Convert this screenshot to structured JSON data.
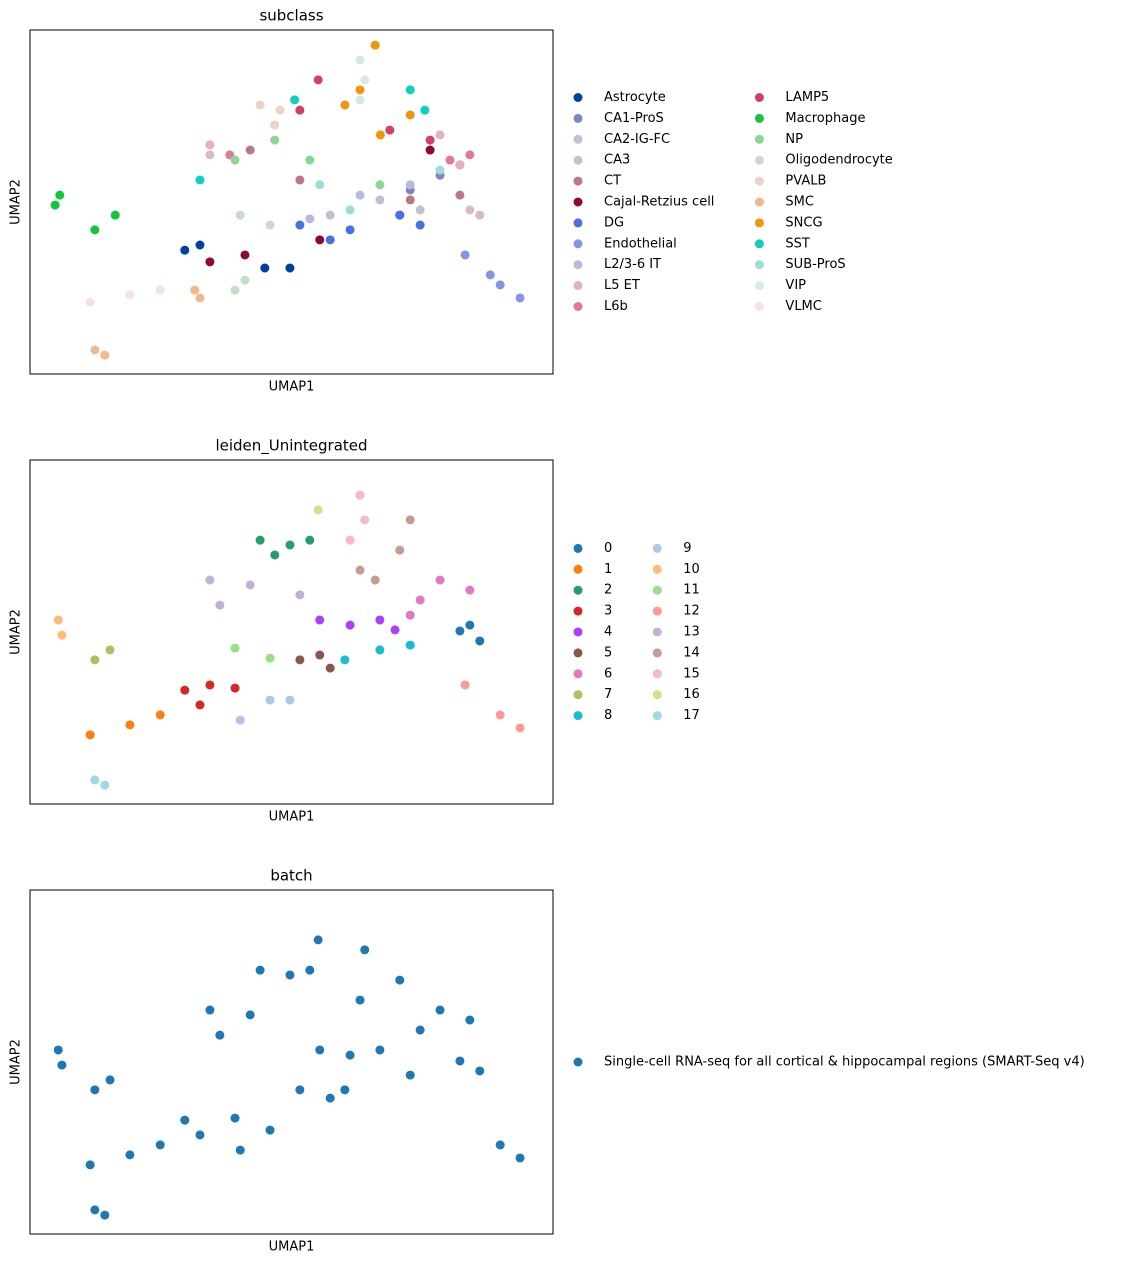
{
  "chart_data": [
    {
      "type": "scatter",
      "title": "subclass",
      "x_label": "UMAP1",
      "y_label": "UMAP2",
      "xlim": [
        0,
        100
      ],
      "ylim": [
        0,
        100
      ],
      "series": [
        {
          "name": "Astrocyte",
          "color": "#023fa5",
          "x": [
            29.6,
            32.5,
            44.9,
            49.7
          ],
          "y": [
            36,
            37.5,
            30.8,
            30.8
          ]
        },
        {
          "name": "CA1-ProS",
          "color": "#7d87b9",
          "x": [
            72.7,
            78.4,
            82.2,
            70.7
          ],
          "y": [
            53.5,
            57.8,
            60.8,
            46.2
          ]
        },
        {
          "name": "CA2-IG-FC",
          "color": "#bec1d4",
          "x": [
            66.9,
            74.6,
            57.4
          ],
          "y": [
            50.6,
            47.7,
            46.2
          ]
        },
        {
          "name": "CA3",
          "color": "#d6bcc0",
          "x": [
            84.1,
            86.0,
            34.4
          ],
          "y": [
            47.7,
            46.2,
            63.7
          ]
        },
        {
          "name": "CT",
          "color": "#bb7784",
          "x": [
            72.7,
            82.2,
            51.6,
            42.1
          ],
          "y": [
            50.6,
            52.0,
            56.4,
            65.1
          ]
        },
        {
          "name": "Cajal-Retzius cell",
          "color": "#8e063b",
          "x": [
            34.4,
            41.1,
            55.4,
            76.5
          ],
          "y": [
            32.6,
            34.6,
            39.0,
            65.1
          ]
        },
        {
          "name": "DG",
          "color": "#4a6fe3",
          "x": [
            51.6,
            61.2,
            70.7,
            74.6,
            57.4
          ],
          "y": [
            43.3,
            41.9,
            46.2,
            43.3,
            39.0
          ]
        },
        {
          "name": "Endothelial",
          "color": "#8595e1",
          "x": [
            83.2,
            89.9,
            93.7,
            88.0
          ],
          "y": [
            34.6,
            25.9,
            22.1,
            28.8
          ]
        },
        {
          "name": "L2/3-6 IT",
          "color": "#b5bbe3",
          "x": [
            53.5,
            63.1,
            72.7
          ],
          "y": [
            45.1,
            52.0,
            55.0
          ]
        },
        {
          "name": "L5 ET",
          "color": "#e6afb9",
          "x": [
            34.4,
            82.2,
            78.4
          ],
          "y": [
            66.6,
            60.8,
            69.5
          ]
        },
        {
          "name": "L6b",
          "color": "#e07b91",
          "x": [
            38.2,
            84.1,
            80.3
          ],
          "y": [
            63.7,
            63.7,
            62.2
          ]
        },
        {
          "name": "LAMP5",
          "color": "#d33f6a",
          "x": [
            55.1,
            51.6,
            68.8,
            76.5
          ],
          "y": [
            85.5,
            76.7,
            70.9,
            68.0
          ]
        },
        {
          "name": "Macrophage",
          "color": "#11c638",
          "x": [
            5.7,
            4.8,
            12.4,
            16.3
          ],
          "y": [
            52.0,
            49.1,
            41.9,
            46.2
          ]
        },
        {
          "name": "NP",
          "color": "#8dd593",
          "x": [
            39.2,
            46.8,
            53.5,
            66.9
          ],
          "y": [
            62.2,
            68.0,
            62.2,
            55.0
          ]
        },
        {
          "name": "Oligodendrocyte",
          "color": "#c6dec7",
          "x": [
            40.2,
            45.9,
            41.1,
            39.2
          ],
          "y": [
            46.2,
            43.3,
            27.3,
            24.4
          ]
        },
        {
          "name": "PVALB",
          "color": "#ead3c6",
          "x": [
            44.0,
            46.8,
            47.8
          ],
          "y": [
            78.2,
            72.4,
            76.7
          ]
        },
        {
          "name": "SMC",
          "color": "#f0b98d",
          "x": [
            12.4,
            14.3,
            31.5,
            32.5
          ],
          "y": [
            7.0,
            5.5,
            24.4,
            22.1
          ]
        },
        {
          "name": "SNCG",
          "color": "#ef9708",
          "x": [
            63.1,
            66.0,
            67.0,
            72.7,
            60.2
          ],
          "y": [
            82.6,
            95.6,
            69.5,
            75.3,
            78.2
          ]
        },
        {
          "name": "SST",
          "color": "#0fcfc0",
          "x": [
            50.6,
            72.7,
            75.5,
            32.5
          ],
          "y": [
            79.7,
            82.6,
            76.7,
            56.4
          ]
        },
        {
          "name": "SUB-ProS",
          "color": "#9cded6",
          "x": [
            55.4,
            78.4,
            61.2
          ],
          "y": [
            55.0,
            59.3,
            47.7
          ]
        },
        {
          "name": "VIP",
          "color": "#d5eae7",
          "x": [
            63.1,
            64.0,
            63.1
          ],
          "y": [
            91.3,
            85.5,
            79.7
          ]
        },
        {
          "name": "VLMC",
          "color": "#f3e1eb",
          "x": [
            11.5,
            19.1,
            24.9
          ],
          "y": [
            20.9,
            23.0,
            24.4
          ]
        }
      ]
    },
    {
      "type": "scatter",
      "title": "leiden_Unintegrated",
      "x_label": "UMAP1",
      "y_label": "UMAP2",
      "xlim": [
        0,
        100
      ],
      "ylim": [
        0,
        100
      ],
      "series": [
        {
          "name": "0",
          "color": "#1f77b4",
          "x": [
            82.2,
            86.0,
            84.1
          ],
          "y": [
            50.3,
            47.4,
            52.0
          ]
        },
        {
          "name": "1",
          "color": "#ff7f0e",
          "x": [
            11.5,
            19.1,
            24.9
          ],
          "y": [
            20.1,
            23.0,
            25.9
          ]
        },
        {
          "name": "2",
          "color": "#279e68",
          "x": [
            44.0,
            49.7,
            53.5,
            46.8
          ],
          "y": [
            76.7,
            75.3,
            76.7,
            72.4
          ]
        },
        {
          "name": "3",
          "color": "#d62728",
          "x": [
            29.6,
            32.5,
            34.4,
            39.2
          ],
          "y": [
            33.1,
            28.8,
            34.6,
            33.7
          ]
        },
        {
          "name": "4",
          "color": "#aa40fc",
          "x": [
            55.4,
            61.2,
            66.9,
            69.8
          ],
          "y": [
            53.5,
            52.0,
            53.5,
            50.6
          ]
        },
        {
          "name": "5",
          "color": "#8c564b",
          "x": [
            51.6,
            55.4,
            57.4
          ],
          "y": [
            41.9,
            43.3,
            39.5
          ]
        },
        {
          "name": "6",
          "color": "#e377c2",
          "x": [
            74.6,
            78.4,
            84.1,
            72.7
          ],
          "y": [
            59.3,
            65.1,
            62.2,
            54.9
          ]
        },
        {
          "name": "7",
          "color": "#b5bd61",
          "x": [
            12.4,
            15.3
          ],
          "y": [
            41.9,
            44.8
          ]
        },
        {
          "name": "8",
          "color": "#17becf",
          "x": [
            60.2,
            66.9,
            72.7
          ],
          "y": [
            41.9,
            44.8,
            46.2
          ]
        },
        {
          "name": "9",
          "color": "#aec7e8",
          "x": [
            40.2,
            45.9,
            49.7
          ],
          "y": [
            24.4,
            30.2,
            30.2
          ]
        },
        {
          "name": "10",
          "color": "#ffbb78",
          "x": [
            5.4,
            6.1
          ],
          "y": [
            53.5,
            49.1
          ]
        },
        {
          "name": "11",
          "color": "#98df8a",
          "x": [
            39.2,
            45.9
          ],
          "y": [
            45.3,
            42.4
          ]
        },
        {
          "name": "12",
          "color": "#ff9896",
          "x": [
            83.2,
            89.9,
            93.7
          ],
          "y": [
            34.6,
            25.9,
            22.1
          ]
        },
        {
          "name": "13",
          "color": "#c5b0d5",
          "x": [
            34.4,
            42.1,
            36.3,
            51.6
          ],
          "y": [
            65.1,
            63.7,
            57.8,
            60.8
          ]
        },
        {
          "name": "14",
          "color": "#c49c94",
          "x": [
            63.1,
            70.7,
            72.7,
            66.0
          ],
          "y": [
            68.0,
            73.8,
            82.6,
            65.1
          ]
        },
        {
          "name": "15",
          "color": "#f7b6d2",
          "x": [
            63.1,
            64.0,
            61.2
          ],
          "y": [
            89.8,
            82.6,
            76.7
          ]
        },
        {
          "name": "16",
          "color": "#dbdb8d",
          "x": [
            55.1
          ],
          "y": [
            85.5
          ]
        },
        {
          "name": "17",
          "color": "#9edae5",
          "x": [
            12.4,
            14.3
          ],
          "y": [
            7.0,
            5.5
          ]
        }
      ]
    },
    {
      "type": "scatter",
      "title": "batch",
      "x_label": "UMAP1",
      "y_label": "UMAP2",
      "xlim": [
        0,
        100
      ],
      "ylim": [
        0,
        100
      ],
      "series": [
        {
          "name": "Single-cell RNA-seq for all cortical & hippocampal regions (SMART-Seq v4)",
          "color": "#1f77b4",
          "x": [
            82.2,
            86.0,
            11.5,
            19.1,
            24.9,
            44.0,
            49.7,
            53.5,
            29.6,
            32.5,
            39.2,
            55.4,
            61.2,
            66.9,
            51.6,
            57.4,
            74.6,
            78.4,
            84.1,
            12.4,
            15.3,
            60.2,
            72.7,
            40.2,
            45.9,
            5.4,
            6.1,
            89.9,
            93.7,
            34.4,
            42.1,
            36.3,
            63.1,
            70.7,
            64.0,
            55.1,
            12.4,
            14.3
          ],
          "y": [
            50.3,
            47.4,
            20.1,
            23.0,
            25.9,
            76.7,
            75.3,
            76.7,
            33.1,
            28.8,
            33.7,
            53.5,
            52.0,
            53.5,
            41.9,
            39.5,
            59.3,
            65.1,
            62.2,
            41.9,
            44.8,
            41.9,
            46.2,
            24.4,
            30.2,
            53.5,
            49.1,
            25.9,
            22.1,
            65.1,
            63.7,
            57.8,
            68.0,
            73.8,
            82.6,
            85.5,
            7.0,
            5.5
          ]
        }
      ]
    }
  ]
}
